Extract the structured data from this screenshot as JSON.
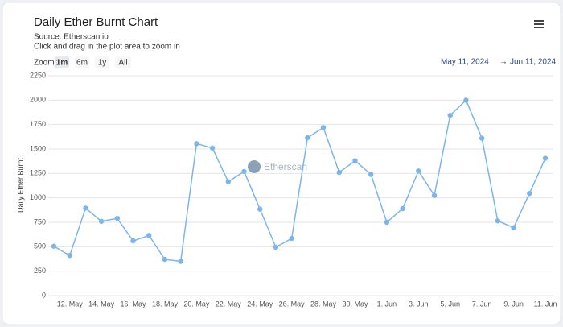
{
  "chart_data": {
    "type": "line",
    "title": "Daily Ether Burnt Chart",
    "subtitle": "Source: Etherscan.io",
    "note": "Click and drag in the plot area to zoom in",
    "zoom_label": "Zoom",
    "zoom_buttons": [
      "1m",
      "6m",
      "1y",
      "All"
    ],
    "range_from": "May 11, 2024",
    "range_arrow": "→",
    "range_to": "Jun 11, 2024",
    "watermark": "Etherscan",
    "y_label": "Daily Ether Burnt",
    "categories": [
      null,
      "12. May",
      null,
      "14. May",
      null,
      "16. May",
      null,
      "18. May",
      null,
      "20. May",
      null,
      "22. May",
      null,
      "24. May",
      null,
      "26. May",
      null,
      "28. May",
      null,
      "30. May",
      null,
      "1. Jun",
      null,
      "3. Jun",
      null,
      "5. Jun",
      null,
      "7. Jun",
      null,
      "9. Jun",
      null,
      "11. Jun"
    ],
    "series": [
      {
        "name": "Daily Ether Burnt",
        "color": "#7cb5ec",
        "values": [
          505,
          410,
          895,
          760,
          790,
          560,
          615,
          370,
          350,
          1555,
          1510,
          1165,
          1270,
          885,
          495,
          585,
          1615,
          1720,
          1260,
          1380,
          1240,
          750,
          890,
          1275,
          1025,
          1845,
          2000,
          1610,
          765,
          695,
          1045,
          1405
        ]
      }
    ],
    "ylim": [
      0,
      2250
    ],
    "yticks": [
      0,
      250,
      500,
      750,
      1000,
      1250,
      1500,
      1750,
      2000,
      2250
    ],
    "grid": true
  }
}
